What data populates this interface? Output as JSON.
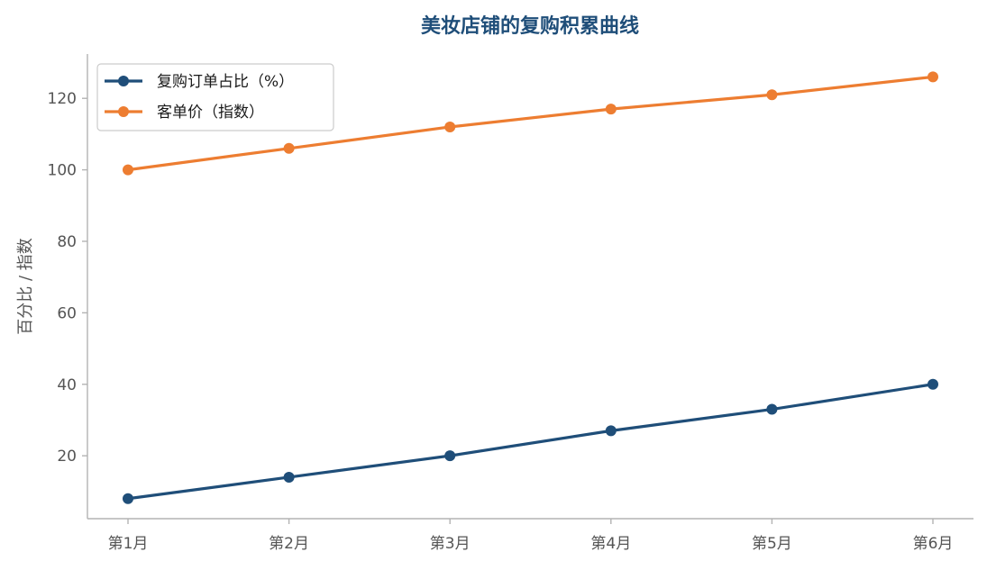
{
  "chart_data": {
    "type": "line",
    "title": "美妆店铺的复购积累曲线",
    "xlabel": "",
    "ylabel": "百分比 / 指数",
    "categories": [
      "第1月",
      "第2月",
      "第3月",
      "第4月",
      "第5月",
      "第6月"
    ],
    "ylim": [
      2.4,
      132.4
    ],
    "yticks": [
      20,
      40,
      60,
      80,
      100,
      120
    ],
    "grid": false,
    "legend_position": "top-left",
    "series": [
      {
        "name": "复购订单占比（%）",
        "values": [
          8,
          14,
          20,
          27,
          33,
          40
        ],
        "color": "#1f4e79",
        "marker": "circle"
      },
      {
        "name": "客单价（指数）",
        "values": [
          100,
          106,
          112,
          117,
          121,
          126
        ],
        "color": "#ed7d31",
        "marker": "circle"
      }
    ]
  },
  "colors": {
    "title": "#1f4e79",
    "axis": "#b3b3b3",
    "tick_text": "#555555",
    "legend_border": "#cccccc"
  }
}
